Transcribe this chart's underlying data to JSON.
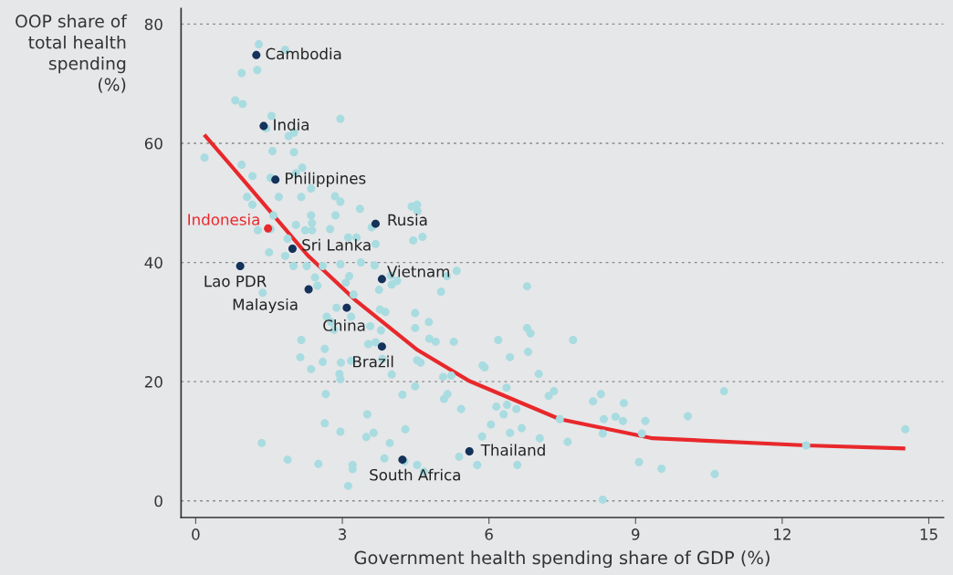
{
  "chart_data": {
    "type": "scatter",
    "xlabel": "Government health spending share of GDP (%)",
    "ylabel": "OOP share of\ntotal health\nspending\n(%)",
    "xlim": [
      -0.3,
      15.3
    ],
    "ylim": [
      -2.8,
      82.6
    ],
    "xticks": [
      0,
      3,
      6,
      9,
      12,
      15
    ],
    "yticks": [
      0,
      20,
      40,
      60,
      80
    ],
    "grid": "y",
    "marker": "circle",
    "series": [
      {
        "color": "#a8dce0",
        "x": [
          1.29,
          1.83,
          0.94,
          1.26,
          0.81,
          0.96,
          1.55,
          2.96,
          1.44,
          1.9,
          2.01,
          0.18,
          1.57,
          2.01,
          0.94,
          1.16,
          1.53,
          2.18,
          2.05,
          1.7,
          1.05,
          1.16,
          2.16,
          2.36,
          2.85,
          2.96,
          3.36,
          4.42,
          4.53,
          4.54,
          1.59,
          2.36,
          2.38,
          2.86,
          2.05,
          2.24,
          2.38,
          2.75,
          1.27,
          1.53,
          1.88,
          3.12,
          3.29,
          3.68,
          3.6,
          4.45,
          4.64,
          1.5,
          1.83,
          2.0,
          2.27,
          2.6,
          2.96,
          3.38,
          3.66,
          3.14,
          2.44,
          2.49,
          3.07,
          3.99,
          4.12,
          4.01,
          3.75,
          3.23,
          1.37,
          2.88,
          3.18,
          2.68,
          3.77,
          3.88,
          4.49,
          3.57,
          3.79,
          4.49,
          2.83,
          2.77,
          2.16,
          2.64,
          3.53,
          3.68,
          2.14,
          2.6,
          2.97,
          3.18,
          2.36,
          2.94,
          2.96,
          4.01,
          3.82,
          4.53,
          4.49,
          4.23,
          2.66,
          3.51,
          2.64,
          2.96,
          3.64,
          3.49,
          4.29,
          3.97,
          1.35,
          1.88,
          2.51,
          3.21,
          3.21,
          3.86,
          4.27,
          4.53,
          3.12,
          5.14,
          5.34,
          5.02,
          6.78,
          4.77,
          6.78,
          6.85,
          4.78,
          4.91,
          5.28,
          6.19,
          7.72,
          6.8,
          6.43,
          4.6,
          5.87,
          5.91,
          5.06,
          5.23,
          7.02,
          5.15,
          5.08,
          5.43,
          6.36,
          6.15,
          6.37,
          6.56,
          6.3,
          7.22,
          7.33,
          7.45,
          8.13,
          8.29,
          8.76,
          8.35,
          8.59,
          8.74,
          9.2,
          8.33,
          9.13,
          6.04,
          5.86,
          6.43,
          6.67,
          7.04,
          7.61,
          5.39,
          5.76,
          6.58,
          4.67,
          9.07,
          8.33,
          10.81,
          10.07,
          9.53,
          10.62,
          12.49,
          14.52
        ],
        "values": [
          76.6,
          75.7,
          71.8,
          72.3,
          67.2,
          66.6,
          64.6,
          64.1,
          62.5,
          61.2,
          61.8,
          57.6,
          58.7,
          58.5,
          56.4,
          54.5,
          54.2,
          55.9,
          55.0,
          51.0,
          51.0,
          49.7,
          51.0,
          52.4,
          51.1,
          50.2,
          49.0,
          49.4,
          49.7,
          48.6,
          47.9,
          47.9,
          46.6,
          47.9,
          46.3,
          45.4,
          45.4,
          45.6,
          45.4,
          45.6,
          44.0,
          44.2,
          44.2,
          43.1,
          45.9,
          43.7,
          44.3,
          41.7,
          41.1,
          39.4,
          39.4,
          39.4,
          39.7,
          40.0,
          39.5,
          37.7,
          37.5,
          36.1,
          36.6,
          37.8,
          36.9,
          36.3,
          35.4,
          34.6,
          34.9,
          32.4,
          30.9,
          30.9,
          32.1,
          31.7,
          31.5,
          29.3,
          28.6,
          29.0,
          28.7,
          30.0,
          27.0,
          25.5,
          26.3,
          26.6,
          24.1,
          23.3,
          23.2,
          23.5,
          22.1,
          21.3,
          20.4,
          21.2,
          23.8,
          23.6,
          19.2,
          17.8,
          17.9,
          14.5,
          13.0,
          11.6,
          11.4,
          10.7,
          12.0,
          9.7,
          9.7,
          6.9,
          6.2,
          6.0,
          5.3,
          7.1,
          6.6,
          6.0,
          2.5,
          37.7,
          38.6,
          35.1,
          36.0,
          30.0,
          29.0,
          28.1,
          27.2,
          26.7,
          26.7,
          27.0,
          27.0,
          25.0,
          24.1,
          23.2,
          22.7,
          22.4,
          20.8,
          21.0,
          21.3,
          17.9,
          17.1,
          15.4,
          19.0,
          15.8,
          16.1,
          15.4,
          14.5,
          17.6,
          18.4,
          13.7,
          16.7,
          17.9,
          16.4,
          13.7,
          14.1,
          13.4,
          13.4,
          11.3,
          11.3,
          12.8,
          10.8,
          11.4,
          12.2,
          10.5,
          9.9,
          7.4,
          6.0,
          6.0,
          4.9,
          6.5,
          0.2,
          18.4,
          14.2,
          5.4,
          4.5,
          9.3,
          12.0
        ]
      },
      {
        "color": "#14325a",
        "x": [
          1.24,
          1.39,
          1.63,
          3.68,
          1.98,
          0.91,
          3.81,
          2.31,
          3.09,
          3.81,
          4.23,
          5.6
        ],
        "values": [
          74.8,
          62.9,
          53.9,
          46.5,
          42.3,
          39.4,
          37.2,
          35.5,
          32.4,
          25.9,
          6.9,
          8.3
        ]
      },
      {
        "name": "Indonesia",
        "color": "#e8282b",
        "x": [
          1.48
        ],
        "values": [
          45.7
        ]
      },
      {
        "type": "line",
        "color": "#e8282b",
        "marker": "none",
        "x": [
          0.2,
          1.0,
          2.29,
          3.25,
          4.54,
          5.6,
          7.45,
          9.35,
          12.49,
          14.48
        ],
        "values": [
          61.2,
          53.6,
          41.2,
          33.8,
          25.3,
          20.1,
          13.7,
          10.5,
          9.3,
          8.8
        ]
      }
    ],
    "annotations": [
      {
        "text": "Cambodia",
        "x": 1.24,
        "y": 74.8
      },
      {
        "text": "India",
        "x": 1.39,
        "y": 62.9
      },
      {
        "text": "Philippines",
        "x": 1.63,
        "y": 53.9
      },
      {
        "text": "Rusia",
        "x": 3.68,
        "y": 46.5
      },
      {
        "text": "Sri Lanka",
        "x": 1.98,
        "y": 42.3
      },
      {
        "text": "Lao PDR",
        "x": 0.91,
        "y": 39.4
      },
      {
        "text": "Vietnam",
        "x": 3.81,
        "y": 37.2
      },
      {
        "text": "Malaysia",
        "x": 2.31,
        "y": 35.5
      },
      {
        "text": "China",
        "x": 3.09,
        "y": 32.4
      },
      {
        "text": "Brazil",
        "x": 3.81,
        "y": 25.9
      },
      {
        "text": "South Africa",
        "x": 4.23,
        "y": 6.9
      },
      {
        "text": "Thailand",
        "x": 5.6,
        "y": 8.3
      }
    ]
  }
}
